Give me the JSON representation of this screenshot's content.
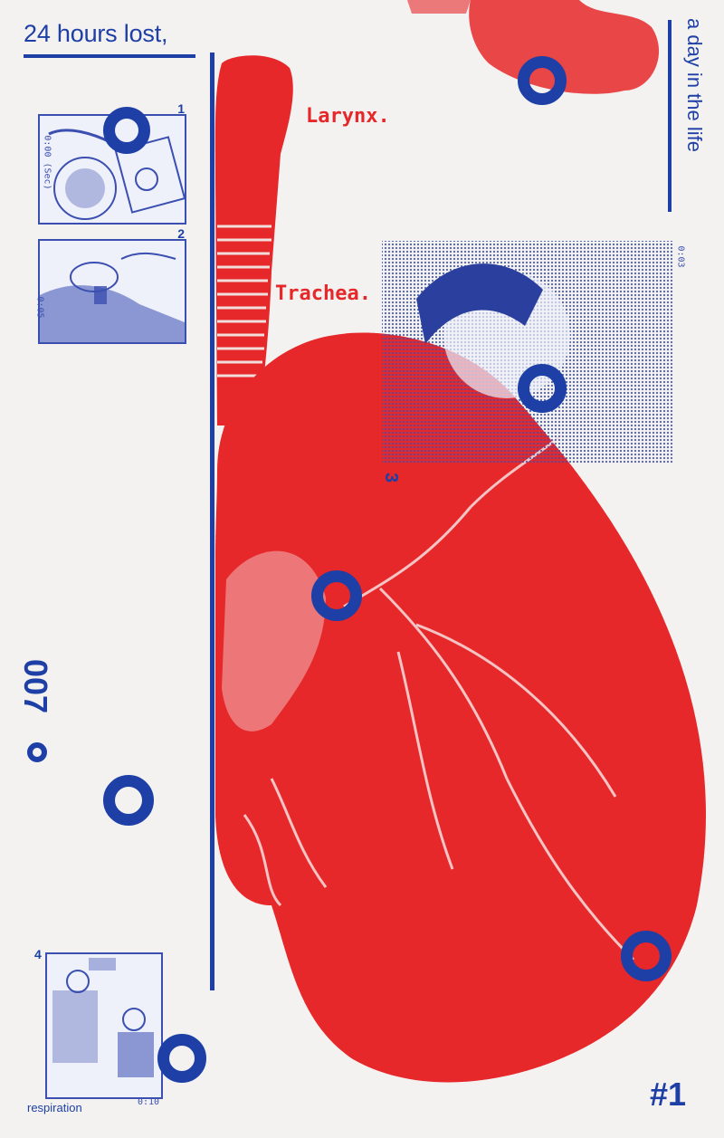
{
  "poster": {
    "title": "24 hours lost,",
    "side_title": "a day in the life",
    "issue": "007",
    "number": "#1",
    "caption": "respiration"
  },
  "illustration": {
    "labels": [
      "Larynx.",
      "Trachea."
    ],
    "panels": [
      {
        "number": "1",
        "note": "0:00 (Sec)"
      },
      {
        "number": "2",
        "note": "0:05"
      },
      {
        "number": "3",
        "note": "0:03"
      },
      {
        "number": "4",
        "note": "0:10"
      }
    ]
  },
  "colors": {
    "blue": "#1d3fa6",
    "red": "#e6282a",
    "paper": "#f3f2f0"
  }
}
